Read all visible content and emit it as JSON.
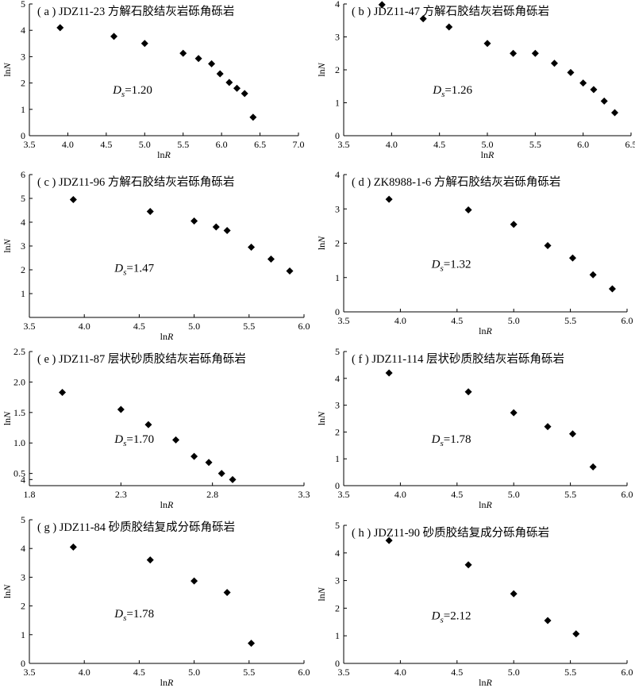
{
  "chart_data": [
    {
      "type": "scatter",
      "title": "( a ) JDZ11-23 方解石胶结灰岩砾角砾岩",
      "xlabel": "lnR",
      "ylabel": "lnN",
      "annotation": "Ds=1.20",
      "xlim": [
        3.5,
        7.0
      ],
      "ylim": [
        0,
        5
      ],
      "xticks": [
        "3.5",
        "4.0",
        "4.5",
        "5.0",
        "5.5",
        "6.0",
        "6.5",
        "7.0"
      ],
      "yticks": [
        "0",
        "1",
        "2",
        "3",
        "4",
        "5"
      ],
      "x": [
        3.9,
        4.6,
        5.0,
        5.5,
        5.7,
        5.87,
        5.98,
        6.1,
        6.2,
        6.3,
        6.41
      ],
      "y": [
        4.1,
        3.77,
        3.5,
        3.13,
        2.93,
        2.73,
        2.35,
        2.02,
        1.8,
        1.6,
        0.7
      ],
      "marker": "diamond",
      "color": "#000000"
    },
    {
      "type": "scatter",
      "title": "( b ) JDZ11-47 方解石胶结灰岩砾角砾岩",
      "xlabel": "lnR",
      "ylabel": "lnN",
      "annotation": "Ds=1.26",
      "xlim": [
        3.5,
        6.5
      ],
      "ylim": [
        0,
        4
      ],
      "xticks": [
        "3.5",
        "4.0",
        "4.5",
        "5.0",
        "5.5",
        "6.0",
        "6.5"
      ],
      "yticks": [
        "0",
        "1",
        "2",
        "3",
        "4"
      ],
      "x": [
        3.9,
        4.33,
        4.6,
        5.0,
        5.27,
        5.5,
        5.7,
        5.87,
        6.0,
        6.11,
        6.22,
        6.33
      ],
      "y": [
        3.98,
        3.55,
        3.3,
        2.8,
        2.5,
        2.5,
        2.2,
        1.92,
        1.6,
        1.4,
        1.05,
        0.7
      ],
      "marker": "diamond",
      "color": "#000000"
    },
    {
      "type": "scatter",
      "title": "( c ) JDZ11-96 方解石胶结灰岩砾角砾岩",
      "xlabel": "lnR",
      "ylabel": "lnN",
      "annotation": "Ds=1.47",
      "xlim": [
        3.5,
        6.0
      ],
      "ylim": [
        0,
        6
      ],
      "xticks": [
        "3.5",
        "4.0",
        "4.5",
        "5.0",
        "5.5",
        "6.0"
      ],
      "yticks": [
        "1",
        "2",
        "3",
        "4",
        "5",
        "6"
      ],
      "x": [
        3.9,
        4.6,
        5.0,
        5.2,
        5.3,
        5.52,
        5.7,
        5.87
      ],
      "y": [
        4.95,
        4.45,
        4.05,
        3.8,
        3.65,
        2.95,
        2.45,
        1.95
      ],
      "marker": "diamond",
      "color": "#000000"
    },
    {
      "type": "scatter",
      "title": "( d ) ZK8988-1-6 方解石胶结灰岩砾角砾岩",
      "xlabel": "lnR",
      "ylabel": "lnN",
      "annotation": "Ds=1.32",
      "xlim": [
        3.5,
        6.0
      ],
      "ylim": [
        0,
        4
      ],
      "xticks": [
        "3.5",
        "4.0",
        "4.5",
        "5.0",
        "5.5",
        "6.0"
      ],
      "yticks": [
        "0",
        "1",
        "2",
        "3",
        "4"
      ],
      "x": [
        3.9,
        4.6,
        5.0,
        5.3,
        5.52,
        5.7,
        5.87
      ],
      "y": [
        3.28,
        2.97,
        2.55,
        1.93,
        1.57,
        1.08,
        0.67
      ],
      "marker": "diamond",
      "color": "#000000"
    },
    {
      "type": "scatter",
      "title": "( e ) JDZ11-87 层状砂质胶结灰岩砾角砾岩",
      "xlabel": "lnR",
      "ylabel": "lnN",
      "annotation": "Ds=1.70",
      "xlim": [
        1.8,
        3.3
      ],
      "ylim": [
        0.3,
        2.5
      ],
      "xticks": [
        "1.8",
        "2.3",
        "2.8",
        "3.3"
      ],
      "yticks": [
        "4",
        "0.5",
        "1.0",
        "1.5",
        "2.0",
        "2.5"
      ],
      "x": [
        1.98,
        2.3,
        2.45,
        2.6,
        2.7,
        2.78,
        2.85,
        2.91
      ],
      "y": [
        1.83,
        1.55,
        1.3,
        1.05,
        0.78,
        0.68,
        0.5,
        0.4
      ],
      "marker": "diamond",
      "color": "#000000"
    },
    {
      "type": "scatter",
      "title": "( f ) JDZ11-114 层状砂质胶结灰岩砾角砾岩",
      "xlabel": "lnR",
      "ylabel": "lnN",
      "annotation": "Ds=1.78",
      "xlim": [
        3.5,
        6.0
      ],
      "ylim": [
        0,
        5
      ],
      "xticks": [
        "3.5",
        "4.0",
        "4.5",
        "5.0",
        "5.5",
        "6.0"
      ],
      "yticks": [
        "0",
        "1",
        "2",
        "3",
        "4",
        "5"
      ],
      "x": [
        3.9,
        4.6,
        5.0,
        5.3,
        5.52,
        5.7
      ],
      "y": [
        4.2,
        3.5,
        2.72,
        2.2,
        1.93,
        0.7
      ],
      "marker": "diamond",
      "color": "#000000"
    },
    {
      "type": "scatter",
      "title": "( g ) JDZ11-84 砂质胶结复成分砾角砾岩",
      "xlabel": "lnR",
      "ylabel": "lnN",
      "annotation": "Ds=1.78",
      "xlim": [
        3.5,
        6.0
      ],
      "ylim": [
        0,
        5
      ],
      "xticks": [
        "3.5",
        "4.0",
        "4.5",
        "5.0",
        "5.5",
        "6.0"
      ],
      "yticks": [
        "0",
        "1",
        "2",
        "3",
        "4",
        "5"
      ],
      "x": [
        3.9,
        4.6,
        5.0,
        5.3,
        5.52
      ],
      "y": [
        4.05,
        3.6,
        2.87,
        2.47,
        0.7
      ],
      "marker": "diamond",
      "color": "#000000"
    },
    {
      "type": "scatter",
      "title": "( h ) JDZ11-90 砂质胶结复成分砾角砾岩",
      "xlabel": "lnR",
      "ylabel": "lnN",
      "annotation": "Ds=2.12",
      "xlim": [
        3.5,
        6.0
      ],
      "ylim": [
        0,
        5
      ],
      "xticks": [
        "3.5",
        "4.0",
        "4.5",
        "5.0",
        "5.5",
        "6.0"
      ],
      "yticks": [
        "0",
        "1",
        "2",
        "3",
        "4",
        "5"
      ],
      "x": [
        3.9,
        4.6,
        5.0,
        5.3,
        5.55
      ],
      "y": [
        4.45,
        3.57,
        2.52,
        1.55,
        1.07
      ],
      "marker": "diamond",
      "color": "#000000"
    }
  ]
}
